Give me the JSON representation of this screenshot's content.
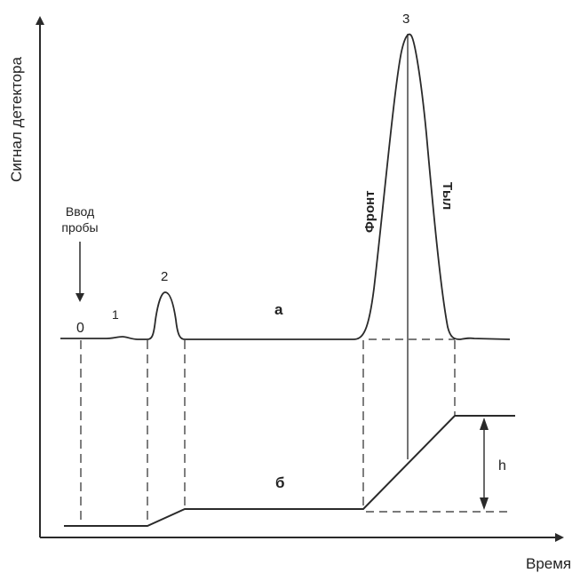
{
  "axes": {
    "y_label": "Сигнал детектора",
    "x_label": "Время"
  },
  "annotations": {
    "injection_line1": "Ввод",
    "injection_line2": "пробы",
    "point_0": "0",
    "point_1": "1",
    "peak_2": "2",
    "peak_3": "3",
    "front": "Фронт",
    "tail": "Тыл",
    "curve_a": "а",
    "curve_b": "б",
    "height": "h"
  }
}
